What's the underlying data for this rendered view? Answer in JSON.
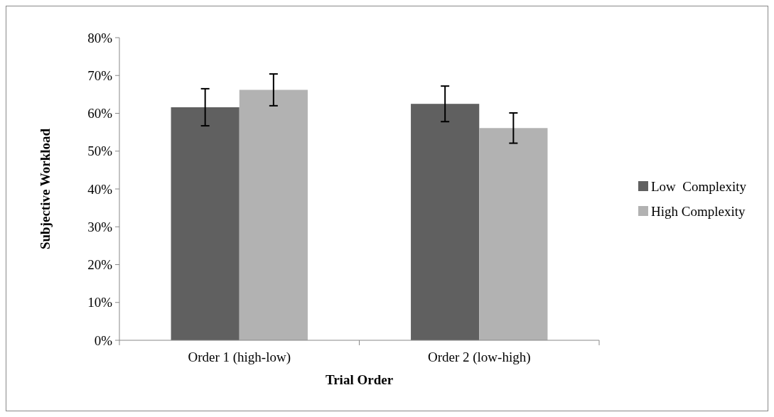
{
  "chart_data": {
    "type": "bar",
    "xlabel": "Trial Order",
    "ylabel": "Subjective Workload",
    "categories": [
      "Order 1 (high-low)",
      "Order 2 (low-high)"
    ],
    "series": [
      {
        "name": "Low  Complexity",
        "color": "#606060",
        "values": [
          61.6,
          62.5
        ],
        "errors": [
          4.9,
          4.7
        ]
      },
      {
        "name": "High Complexity",
        "color": "#b2b2b2",
        "values": [
          66.2,
          56.1
        ],
        "errors": [
          4.2,
          4.0
        ]
      }
    ],
    "ylim": [
      0,
      80
    ],
    "yticks": [
      {
        "value": 0,
        "label": "0%"
      },
      {
        "value": 10,
        "label": "10%"
      },
      {
        "value": 20,
        "label": "20%"
      },
      {
        "value": 30,
        "label": "30%"
      },
      {
        "value": 40,
        "label": "40%"
      },
      {
        "value": 50,
        "label": "50%"
      },
      {
        "value": 60,
        "label": "60%"
      },
      {
        "value": 70,
        "label": "70%"
      },
      {
        "value": 80,
        "label": "80%"
      }
    ],
    "grid": false,
    "legend": "right"
  }
}
